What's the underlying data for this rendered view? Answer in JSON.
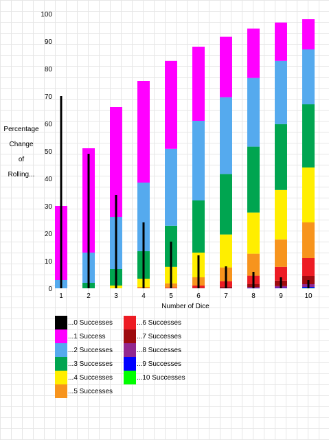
{
  "chart_data": {
    "type": "bar",
    "ylabel_lines": [
      "Percentage",
      "Change",
      "of",
      "Rolling..."
    ],
    "xlabel": "Number of Dice",
    "ylim": [
      0,
      100
    ],
    "yticks": [
      0,
      10,
      20,
      30,
      40,
      50,
      60,
      70,
      80,
      90,
      100
    ],
    "categories": [
      "1",
      "2",
      "3",
      "4",
      "5",
      "6",
      "7",
      "8",
      "9",
      "10"
    ],
    "grid": "on",
    "legend_placement": "bottom-left",
    "series": [
      {
        "name": "...0 Successes",
        "color": "#000000",
        "values": [
          70,
          49,
          34,
          24,
          17,
          12,
          8,
          6,
          4,
          3
        ]
      },
      {
        "name": "...1 Success",
        "color": "#ff00ff",
        "values": [
          27,
          38,
          40,
          37,
          32,
          27,
          22,
          18,
          14,
          11
        ]
      },
      {
        "name": "...2 Successes",
        "color": "#55aaee",
        "values": [
          3,
          11,
          19,
          25,
          28,
          29,
          28,
          25,
          23,
          20
        ]
      },
      {
        "name": "...3 Successes",
        "color": "#00a550",
        "values": [
          0,
          2,
          6,
          10,
          15,
          19,
          22,
          24,
          24,
          23
        ]
      },
      {
        "name": "...4 Successes",
        "color": "#ffee00",
        "values": [
          0,
          0,
          1,
          3,
          6,
          9,
          12,
          15,
          18,
          20
        ]
      },
      {
        "name": "...5 Successes",
        "color": "#f7941d",
        "values": [
          0,
          0,
          0,
          0.5,
          1.5,
          3,
          5,
          8,
          10,
          13
        ]
      },
      {
        "name": "...6 Successes",
        "color": "#ed1c24",
        "values": [
          0,
          0,
          0,
          0,
          0.3,
          0.8,
          2,
          3,
          5,
          6.5
        ]
      },
      {
        "name": "...7 Successes",
        "color": "#9e0b0f",
        "values": [
          0,
          0,
          0,
          0,
          0,
          0.2,
          0.5,
          1.2,
          2,
          3
        ]
      },
      {
        "name": "...8 Successes",
        "color": "#92278f",
        "values": [
          0,
          0,
          0,
          0,
          0,
          0,
          0.1,
          0.3,
          0.6,
          1
        ]
      },
      {
        "name": "...9 Successes",
        "color": "#0000ff",
        "values": [
          0,
          0,
          0,
          0,
          0,
          0,
          0,
          0.1,
          0.2,
          0.4
        ]
      },
      {
        "name": "...10 Successes",
        "color": "#00ff00",
        "values": [
          0,
          0,
          0,
          0,
          0,
          0,
          0,
          0,
          0,
          0.1
        ]
      }
    ]
  }
}
